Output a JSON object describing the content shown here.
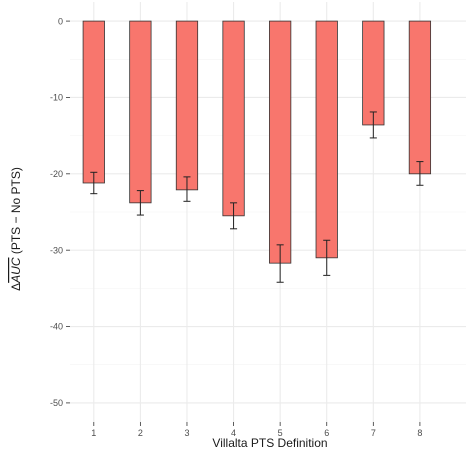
{
  "chart_data": {
    "type": "bar",
    "title": "",
    "xlabel": "Villalta PTS Definition",
    "ylabel": "Δ",
    "ylabel_main": "AUC",
    "ylabel_suffix": " (PTS − No PTS)",
    "categories": [
      "1",
      "2",
      "3",
      "4",
      "5",
      "6",
      "7",
      "8"
    ],
    "values": [
      -21.2,
      -23.8,
      -22.1,
      -25.5,
      -31.7,
      -31.0,
      -13.6,
      -20.0
    ],
    "error_low": [
      -22.6,
      -25.4,
      -23.6,
      -27.2,
      -34.2,
      -33.3,
      -15.3,
      -21.5
    ],
    "error_high": [
      -19.8,
      -22.2,
      -20.4,
      -23.8,
      -29.3,
      -28.7,
      -11.9,
      -18.4
    ],
    "y_ticks": [
      0,
      -10,
      -20,
      -30,
      -40,
      -50
    ],
    "ylim": [
      -52.5,
      2.5
    ],
    "grid": true,
    "colors": {
      "bar_fill": "#F8766D",
      "bar_outline": "#333333",
      "background": "#ffffff",
      "grid": "#ebebeb"
    }
  }
}
